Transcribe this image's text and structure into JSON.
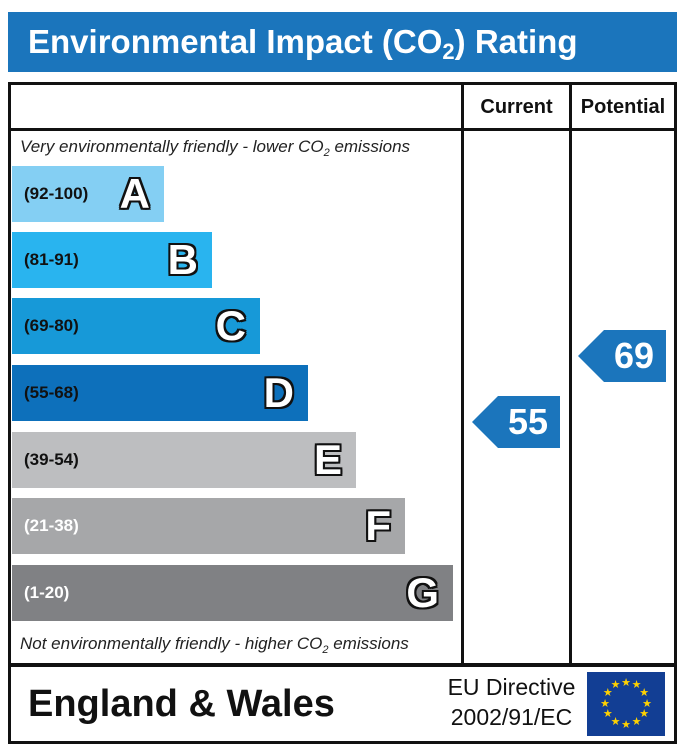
{
  "title": {
    "main": "Environmental Impact (CO",
    "sub": "2",
    "tail": ") Rating"
  },
  "columns": {
    "current": "Current",
    "potential": "Potential"
  },
  "notes": {
    "top": {
      "pre": "Very environmentally friendly - lower CO",
      "sub": "2",
      "post": " emissions"
    },
    "bottom": {
      "pre": "Not environmentally friendly - higher CO",
      "sub": "2",
      "post": " emissions"
    }
  },
  "bands": [
    {
      "range": "(92-100)",
      "letter": "A",
      "color": "#84cff3"
    },
    {
      "range": "(81-91)",
      "letter": "B",
      "color": "#29b4ef"
    },
    {
      "range": "(69-80)",
      "letter": "C",
      "color": "#1799d8"
    },
    {
      "range": "(55-68)",
      "letter": "D",
      "color": "#0d70bb"
    },
    {
      "range": "(39-54)",
      "letter": "E",
      "color": "#bdbec0"
    },
    {
      "range": "(21-38)",
      "letter": "F",
      "color": "#a6a7a9"
    },
    {
      "range": "(1-20)",
      "letter": "G",
      "color": "#808184"
    }
  ],
  "ratings": {
    "current": "55",
    "potential": "69"
  },
  "footer": {
    "region": "England & Wales",
    "directive_line1": "EU Directive",
    "directive_line2": "2002/91/EC"
  },
  "colors": {
    "accent": "#1b75bc",
    "flag": "#123e94",
    "stars": "#ffd200"
  },
  "icons": {
    "flag": "eu-flag-icon"
  }
}
